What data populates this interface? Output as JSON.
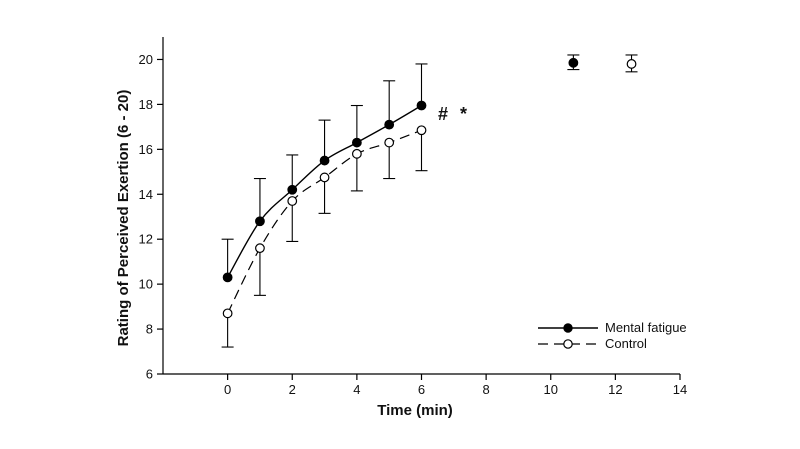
{
  "chart_data": {
    "type": "line",
    "xlabel": "Time (min)",
    "ylabel": "Rating of Perceived Exertion (6 - 20)",
    "xlim": [
      -2,
      14
    ],
    "ylim": [
      6,
      21
    ],
    "x_ticks": [
      0,
      2,
      4,
      6,
      8,
      10,
      12,
      14
    ],
    "y_ticks": [
      6,
      8,
      10,
      12,
      14,
      16,
      18,
      20
    ],
    "grid": false,
    "legend_position": "bottom-right",
    "annotations": [
      "#",
      "*"
    ],
    "series": [
      {
        "name": "Mental fatigue",
        "marker": "filled-circle",
        "line": "solid",
        "color": "#000000",
        "x": [
          0,
          1,
          2,
          3,
          4,
          5,
          6
        ],
        "y": [
          10.3,
          12.8,
          14.2,
          15.5,
          16.3,
          17.1,
          17.95
        ],
        "err_upper": [
          12.0,
          14.7,
          15.75,
          17.3,
          17.95,
          19.05,
          19.8
        ],
        "err_lower": [
          null,
          null,
          null,
          null,
          null,
          null,
          null
        ],
        "final": {
          "x": 10.7,
          "y": 19.85,
          "err": [
            19.55,
            20.2
          ]
        }
      },
      {
        "name": "Control",
        "marker": "open-circle",
        "line": "dashed",
        "color": "#000000",
        "x": [
          0,
          1,
          2,
          3,
          4,
          5,
          6
        ],
        "y": [
          8.7,
          11.6,
          13.7,
          14.75,
          15.8,
          16.3,
          16.85
        ],
        "err_upper": [
          null,
          null,
          null,
          null,
          null,
          null,
          null
        ],
        "err_lower": [
          7.2,
          9.5,
          11.9,
          13.15,
          14.15,
          14.7,
          15.05
        ],
        "final": {
          "x": 12.5,
          "y": 19.8,
          "err": [
            19.45,
            20.2
          ]
        }
      }
    ]
  }
}
